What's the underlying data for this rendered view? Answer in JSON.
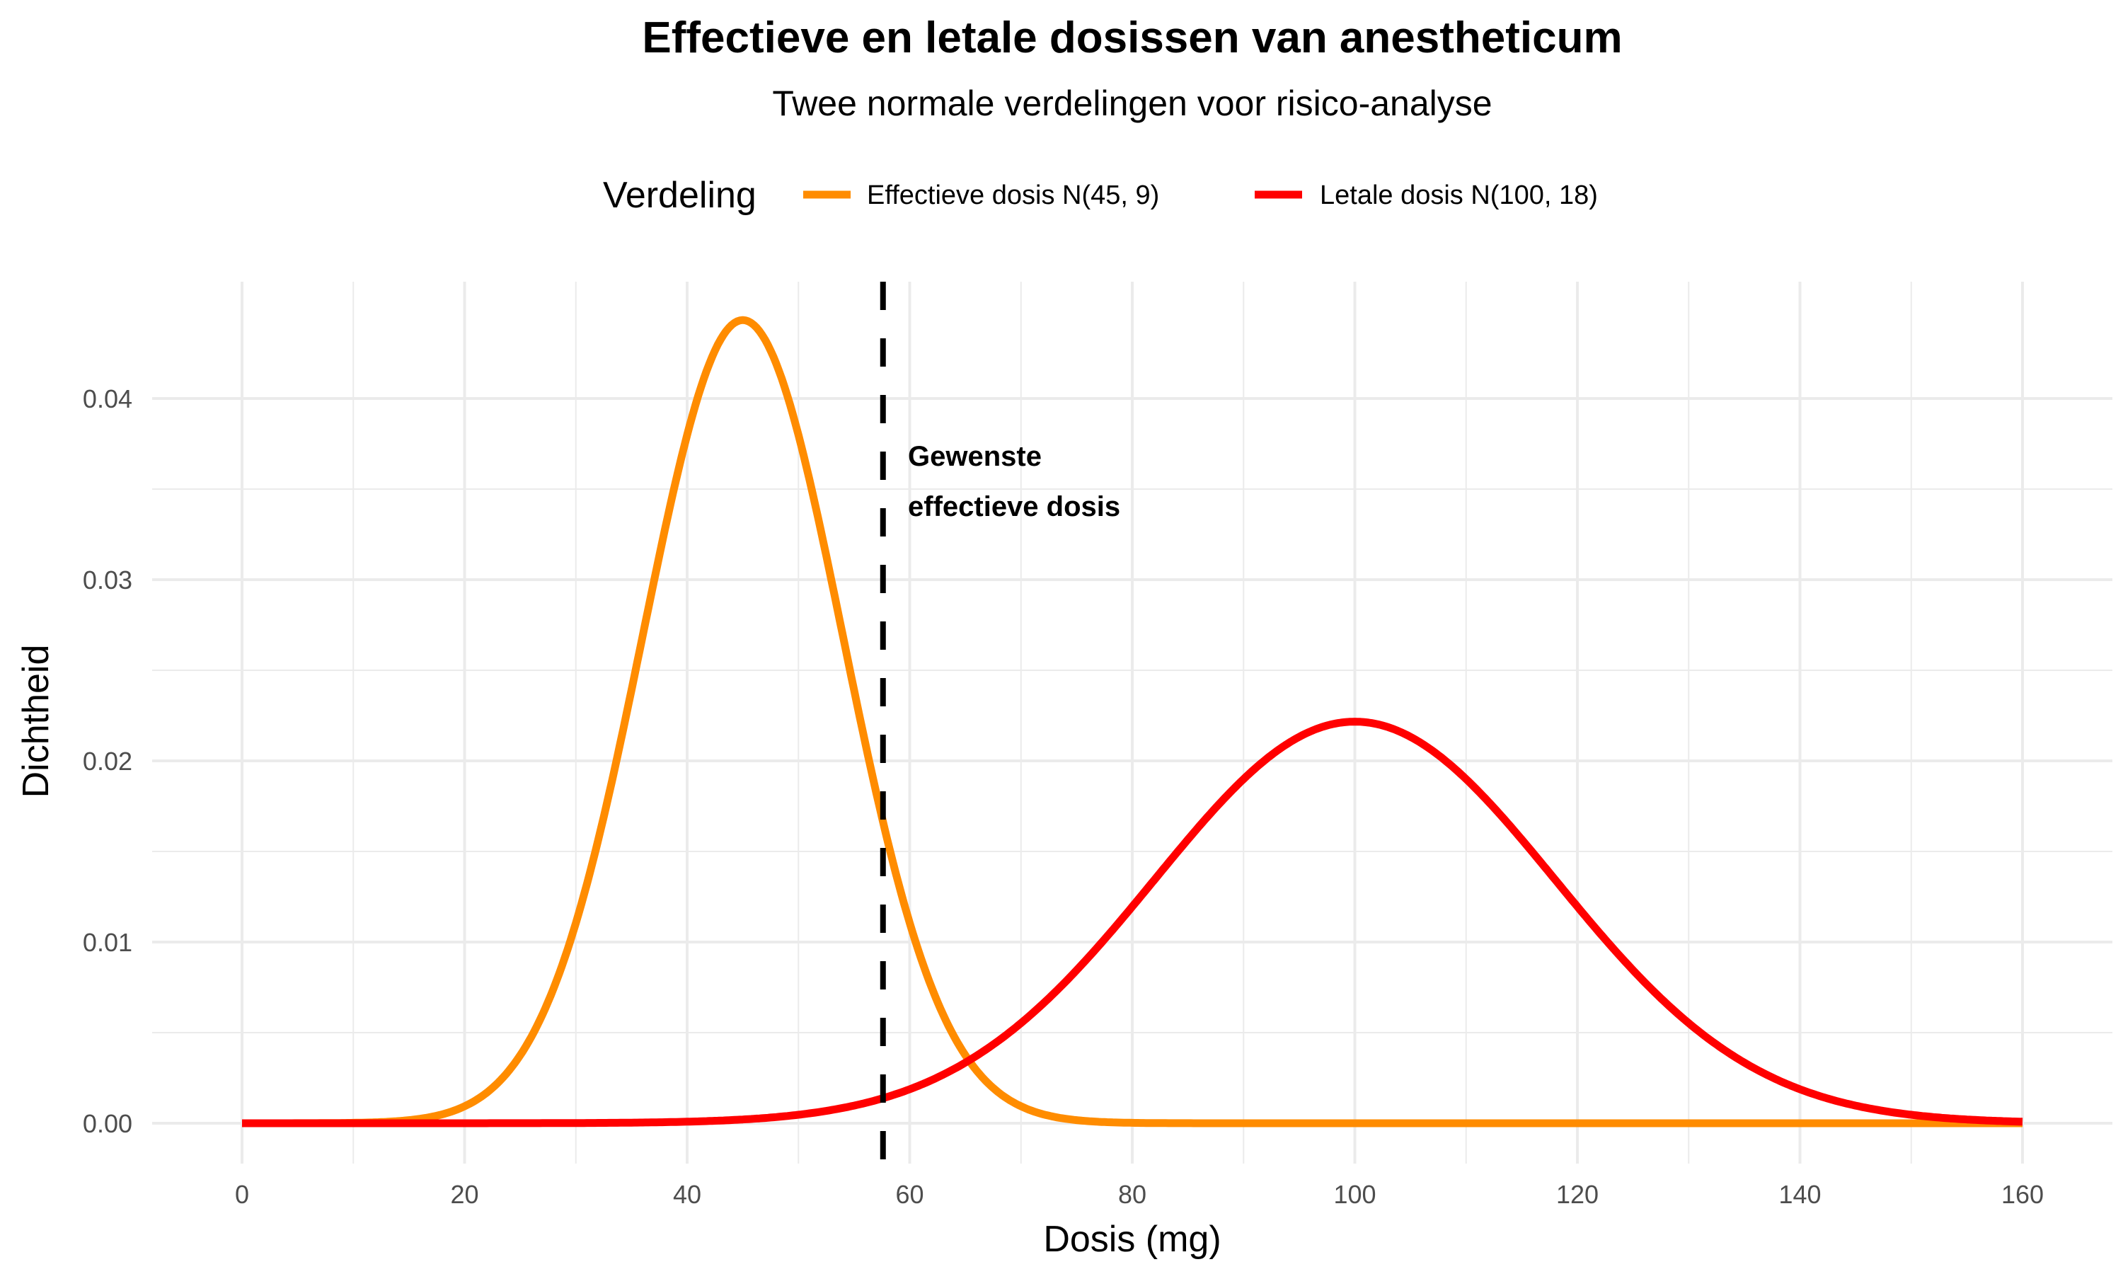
{
  "chart_data": {
    "type": "line",
    "title": "Effectieve en letale dosissen van anestheticum",
    "subtitle": "Twee normale verdelingen voor risico-analyse",
    "xlabel": "Dosis (mg)",
    "ylabel": "Dichtheid",
    "xlim": [
      0,
      160
    ],
    "ylim": [
      0,
      0.045
    ],
    "x_ticks": [
      "0",
      "20",
      "40",
      "60",
      "80",
      "100",
      "120",
      "140",
      "160"
    ],
    "y_ticks": [
      "0.00",
      "0.01",
      "0.02",
      "0.03",
      "0.04"
    ],
    "grid": true,
    "legend": {
      "title": "Verdeling",
      "placement": "top"
    },
    "series": [
      {
        "name": "Effectieve dosis N(45, 9)",
        "distribution": "normal",
        "mean": 45,
        "sd": 9,
        "color": "#FF8C00"
      },
      {
        "name": "Letale dosis N(100, 18)",
        "distribution": "normal",
        "mean": 100,
        "sd": 18,
        "color": "#FF0000"
      }
    ],
    "vline": {
      "x": 57.6,
      "style": "dashed",
      "color": "#000000"
    },
    "annotation": {
      "line1": "Gewenste",
      "line2": "effectieve dosis",
      "x": 57.6
    }
  }
}
